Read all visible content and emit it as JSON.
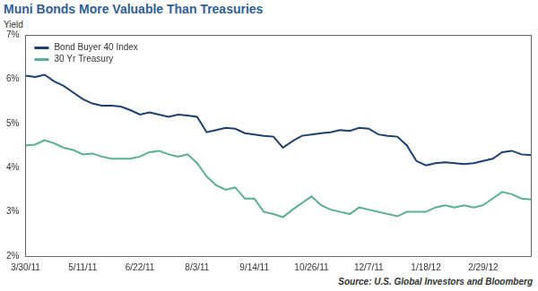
{
  "chart_data": {
    "type": "line",
    "title": "Muni Bonds More Valuable Than Treasuries",
    "y_label": "Yield",
    "source": "Source: U.S. Global Investors and Bloomberg",
    "categories": [
      "3/30/11",
      null,
      null,
      null,
      null,
      null,
      "5/11/11",
      null,
      null,
      null,
      null,
      null,
      "6/22/11",
      null,
      null,
      null,
      null,
      null,
      "8/3/11",
      null,
      null,
      null,
      null,
      null,
      "9/14/11",
      null,
      null,
      null,
      null,
      null,
      "10/26/11",
      null,
      null,
      null,
      null,
      null,
      "12/7/11",
      null,
      null,
      null,
      null,
      null,
      "1/18/12",
      null,
      null,
      null,
      null,
      null,
      "2/29/12",
      null,
      null,
      null,
      null,
      null
    ],
    "series": [
      {
        "name": "Bond Buyer 40 Index",
        "color": "#1d3f73",
        "values": [
          6.08,
          6.05,
          6.1,
          5.95,
          5.85,
          5.7,
          5.55,
          5.45,
          5.4,
          5.4,
          5.38,
          5.3,
          5.2,
          5.25,
          5.2,
          5.15,
          5.2,
          5.18,
          5.15,
          4.8,
          4.85,
          4.9,
          4.88,
          4.78,
          4.75,
          4.72,
          4.7,
          4.45,
          4.6,
          4.72,
          4.75,
          4.78,
          4.8,
          4.85,
          4.83,
          4.9,
          4.88,
          4.75,
          4.72,
          4.7,
          4.5,
          4.15,
          4.05,
          4.1,
          4.12,
          4.1,
          4.08,
          4.1,
          4.15,
          4.2,
          4.35,
          4.38,
          4.3,
          4.28
        ]
      },
      {
        "name": "30 Yr Treasury",
        "color": "#5aae98",
        "values": [
          4.5,
          4.52,
          4.62,
          4.55,
          4.45,
          4.4,
          4.3,
          4.32,
          4.25,
          4.2,
          4.2,
          4.2,
          4.25,
          4.35,
          4.38,
          4.3,
          4.25,
          4.3,
          4.1,
          3.8,
          3.6,
          3.5,
          3.55,
          3.3,
          3.3,
          3.0,
          2.95,
          2.88,
          3.05,
          3.2,
          3.35,
          3.15,
          3.05,
          3.0,
          2.95,
          3.1,
          3.05,
          3.0,
          2.95,
          2.9,
          3.0,
          3.0,
          3.0,
          3.1,
          3.15,
          3.1,
          3.15,
          3.1,
          3.15,
          3.3,
          3.45,
          3.4,
          3.3,
          3.28
        ]
      }
    ],
    "ylim": [
      2,
      7
    ],
    "yticks": [
      {
        "value": 2,
        "label": "2%"
      },
      {
        "value": 3,
        "label": "3%"
      },
      {
        "value": 4,
        "label": "4%"
      },
      {
        "value": 5,
        "label": "5%"
      },
      {
        "value": 6,
        "label": "6%"
      },
      {
        "value": 7,
        "label": "7%"
      }
    ],
    "grid": false,
    "legend": "upper left"
  }
}
